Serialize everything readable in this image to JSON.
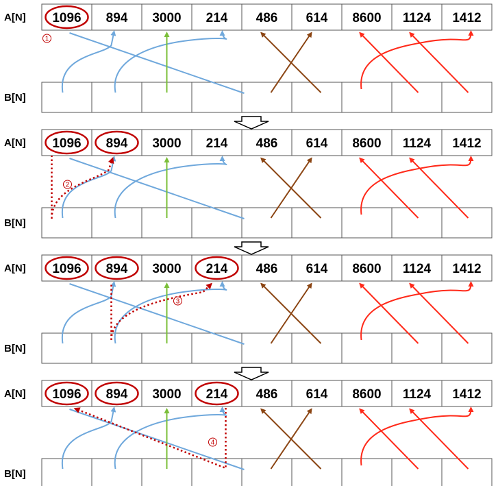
{
  "labels": {
    "a": "A[N]",
    "b": "B[N]"
  },
  "a_values": [
    "1096",
    "894",
    "3000",
    "214",
    "486",
    "614",
    "8600",
    "1124",
    "1412"
  ],
  "b_cells": 9,
  "colors": {
    "blue": "#6fa8dc",
    "green": "#7bbf3a",
    "brown": "#8b4513",
    "red": "#ff2a1a",
    "dotted": "#c00000",
    "highlight": "#c00000",
    "grid": "#555555"
  },
  "panels": [
    {
      "highlights": [
        0
      ],
      "step": "①"
    },
    {
      "highlights": [
        0,
        1
      ],
      "step": "②"
    },
    {
      "highlights": [
        0,
        1,
        3
      ],
      "step": "③"
    },
    {
      "highlights": [
        0,
        1,
        3
      ],
      "step": "④"
    }
  ],
  "arrow_icon": "hollow-down-arrow-icon"
}
